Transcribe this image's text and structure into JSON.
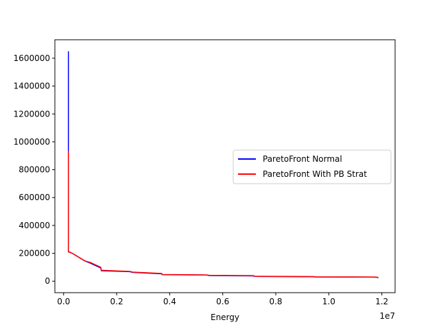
{
  "chart_data": {
    "type": "line",
    "title": "",
    "xlabel": "Energy",
    "ylabel": "",
    "x_offset_text": "1e7",
    "xlim": [
      -330000,
      12500000
    ],
    "ylim": [
      -82500,
      1732500
    ],
    "x_ticks": [
      0,
      2000000,
      4000000,
      6000000,
      8000000,
      10000000,
      12000000
    ],
    "x_tick_labels": [
      "0.0",
      "0.2",
      "0.4",
      "0.6",
      "0.8",
      "1.0",
      "1.2"
    ],
    "y_ticks": [
      0,
      200000,
      400000,
      600000,
      800000,
      1000000,
      1200000,
      1400000,
      1600000
    ],
    "y_tick_labels": [
      "0",
      "200000",
      "400000",
      "600000",
      "800000",
      "1000000",
      "1200000",
      "1400000",
      "1600000"
    ],
    "grid": false,
    "legend_position": "center-right",
    "series": [
      {
        "name": "ParetoFront Normal",
        "color": "#0000ff",
        "x": [
          180000,
          180000,
          200000,
          330000,
          800000,
          1000000,
          1400000,
          1420000,
          2500000,
          2600000,
          3700000,
          3720000,
          5400000,
          5500000,
          7150000,
          7200000,
          9400000,
          9500000,
          11600000,
          11800000,
          11870000
        ],
        "y": [
          1650000,
          210000,
          210000,
          200000,
          145000,
          130000,
          95000,
          75000,
          68000,
          63000,
          53000,
          47000,
          44000,
          40000,
          38000,
          34000,
          32000,
          30000,
          29000,
          28000,
          25000
        ]
      },
      {
        "name": "ParetoFront With PB Strat",
        "color": "#ff0000",
        "x": [
          180000,
          180000,
          200000,
          330000,
          800000,
          1000000,
          1400000,
          1420000,
          2500000,
          2600000,
          3700000,
          3720000,
          5400000,
          5500000,
          7150000,
          7200000,
          9400000,
          9500000,
          11600000,
          11800000,
          11870000
        ],
        "y": [
          935000,
          210000,
          210000,
          200000,
          145000,
          135000,
          100000,
          78000,
          70000,
          65000,
          55000,
          48000,
          45000,
          42000,
          40000,
          35000,
          33000,
          31000,
          30000,
          29000,
          26000
        ]
      }
    ]
  }
}
